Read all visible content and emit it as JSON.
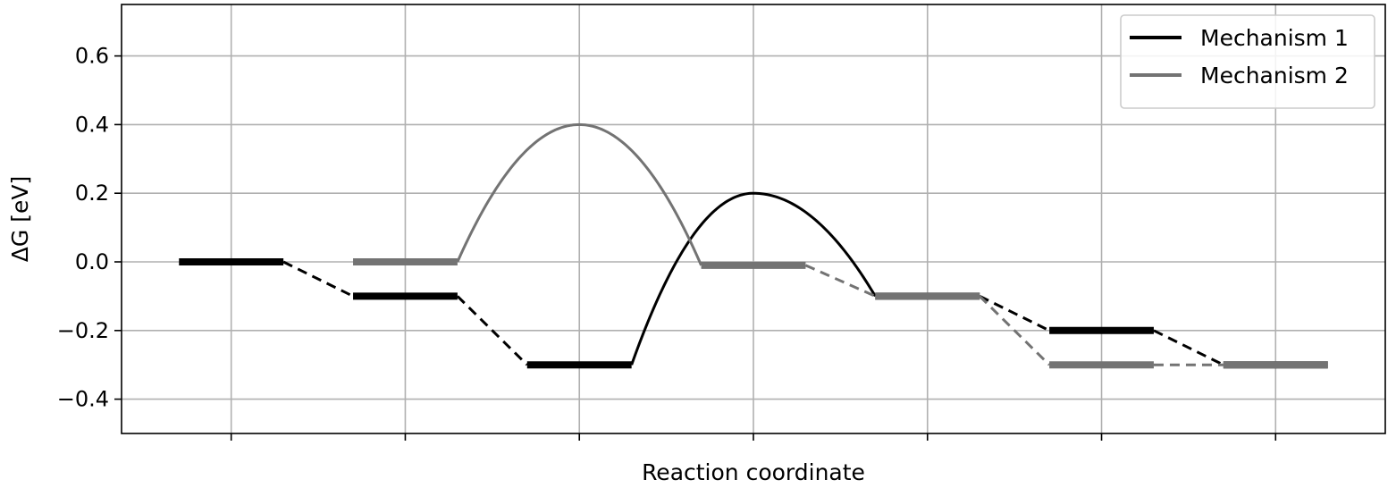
{
  "chart_data": {
    "type": "line",
    "title": "",
    "xlabel": "Reaction coordinate",
    "ylabel": "ΔG [eV]",
    "xlim": [
      -0.63,
      6.63
    ],
    "ylim": [
      -0.5,
      0.75
    ],
    "x_ticks": [
      0,
      1,
      2,
      3,
      4,
      5,
      6
    ],
    "y_ticks": [
      -0.4,
      -0.2,
      0.0,
      0.2,
      0.4,
      0.6
    ],
    "y_tick_labels": [
      "−0.4",
      "−0.2",
      "0.0",
      "0.2",
      "0.4",
      "0.6"
    ],
    "grid": true,
    "legend": "top-right",
    "level_half_width": 0.3,
    "series": [
      {
        "name": "Mechanism 1",
        "color": "#000000",
        "levels": [
          {
            "x": 0,
            "y": 0.0
          },
          {
            "x": 1,
            "y": -0.1
          },
          {
            "x": 2,
            "y": -0.3
          },
          {
            "x": 4,
            "y": -0.1
          },
          {
            "x": 5,
            "y": -0.2
          },
          {
            "x": 6,
            "y": -0.3
          }
        ],
        "connectors": [
          {
            "from": 0,
            "to": 1,
            "style": "dashed"
          },
          {
            "from": 1,
            "to": 2,
            "style": "dashed"
          },
          {
            "from": 2,
            "to": 3,
            "style": "barrier",
            "peak_x": 3,
            "peak_y": 0.2
          },
          {
            "from": 3,
            "to": 4,
            "style": "dashed"
          },
          {
            "from": 4,
            "to": 5,
            "style": "dashed"
          }
        ]
      },
      {
        "name": "Mechanism 2",
        "color": "#737373",
        "levels": [
          {
            "x": 1,
            "y": 0.0
          },
          {
            "x": 3,
            "y": -0.01
          },
          {
            "x": 4,
            "y": -0.1
          },
          {
            "x": 5,
            "y": -0.3
          },
          {
            "x": 6,
            "y": -0.3
          }
        ],
        "connectors": [
          {
            "from": 0,
            "to": 1,
            "style": "barrier",
            "peak_x": 2,
            "peak_y": 0.4
          },
          {
            "from": 1,
            "to": 2,
            "style": "dashed"
          },
          {
            "from": 2,
            "to": 3,
            "style": "dashed"
          },
          {
            "from": 3,
            "to": 4,
            "style": "dashed"
          }
        ]
      }
    ]
  }
}
